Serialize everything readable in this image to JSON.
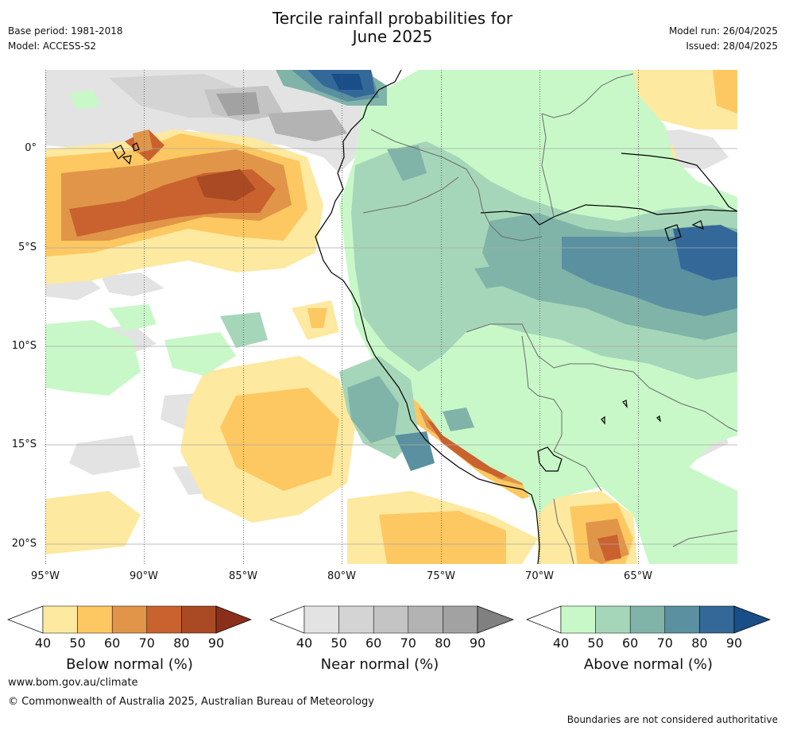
{
  "header": {
    "title_line1": "Tercile rainfall probabilities for",
    "title_line2": "June 2025",
    "base_period": "Base period: 1981-2018",
    "model": "Model: ACCESS-S2",
    "model_run": "Model run: 26/04/2025",
    "issued": "Issued: 28/04/2025"
  },
  "map": {
    "lat_labels": [
      "0°",
      "5°S",
      "10°S",
      "15°S",
      "20°S"
    ],
    "lon_labels": [
      "95°W",
      "90°W",
      "85°W",
      "80°W",
      "75°W",
      "70°W",
      "65°W"
    ],
    "background_color": "#ffffff",
    "colors": {
      "below": [
        "#ffffff",
        "#fde99f",
        "#fdc862",
        "#e19548",
        "#c9622f",
        "#a94a24",
        "#8c2f1a"
      ],
      "near": [
        "#ffffff",
        "#e3e3e3",
        "#d4d4d4",
        "#c4c4c4",
        "#b3b3b3",
        "#a2a2a2",
        "#808080"
      ],
      "above": [
        "#ffffff",
        "#c8f8c8",
        "#a6d6b9",
        "#80b4a8",
        "#5a90a0",
        "#336898",
        "#1a4e88"
      ]
    }
  },
  "colorbars": [
    {
      "label": "Below normal (%)",
      "ticks": [
        "40",
        "50",
        "60",
        "70",
        "80",
        "90"
      ]
    },
    {
      "label": "Near normal (%)",
      "ticks": [
        "40",
        "50",
        "60",
        "70",
        "80",
        "90"
      ]
    },
    {
      "label": "Above normal (%)",
      "ticks": [
        "40",
        "50",
        "60",
        "70",
        "80",
        "90"
      ]
    }
  ],
  "footer": {
    "website": "www.bom.gov.au/climate",
    "copyright": "© Commonwealth of Australia 2025, Australian Bureau of Meteorology",
    "disclaimer": "Boundaries are not considered authoritative"
  }
}
